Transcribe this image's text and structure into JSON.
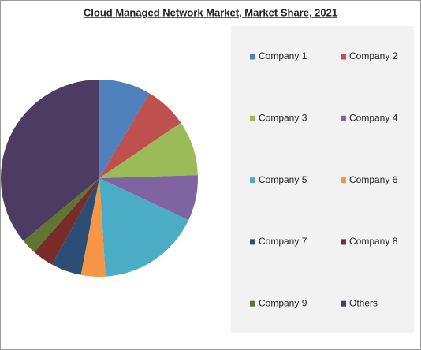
{
  "chart_data": {
    "type": "pie",
    "title": "Cloud Managed Network Market, Market Share, 2021",
    "categories": [
      "Company 1",
      "Company 2",
      "Company 3",
      "Company 4",
      "Company 5",
      "Company 6",
      "Company 7",
      "Company 8",
      "Company 9",
      "Others"
    ],
    "values": [
      8.5,
      7,
      9,
      7.5,
      17,
      4,
      5,
      3.5,
      2.5,
      36
    ],
    "colors": [
      "#4f81bd",
      "#c0504d",
      "#9bbb59",
      "#8064a2",
      "#4bacc6",
      "#f79646",
      "#2c4d75",
      "#772c2a",
      "#5f7530",
      "#4d3b62"
    ]
  }
}
